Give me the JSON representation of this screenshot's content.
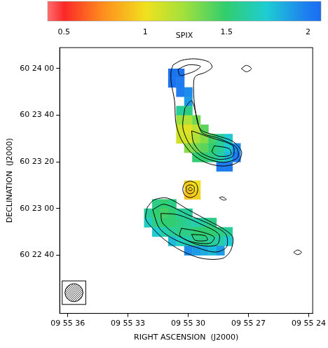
{
  "chart_data": {
    "type": "heatmap",
    "x_label": "RIGHT ASCENSION  (J2000)",
    "y_label": "DECLINATION  (J2000)",
    "xlim": [
      36.4,
      23.8
    ],
    "ylim": [
      15,
      129
    ],
    "xticks": [
      {
        "value": 36,
        "label": "09 55 36"
      },
      {
        "value": 33,
        "label": "09 55 33"
      },
      {
        "value": 30,
        "label": "09 55 30"
      },
      {
        "value": 27,
        "label": "09 55 27"
      },
      {
        "value": 24,
        "label": "09 55 24"
      }
    ],
    "yticks": [
      {
        "value": 40,
        "label": "60 22 40"
      },
      {
        "value": 60,
        "label": "60 23 00"
      },
      {
        "value": 80,
        "label": "60 23 20"
      },
      {
        "value": 100,
        "label": "60 23 40"
      },
      {
        "value": 120,
        "label": "60 24 00"
      }
    ],
    "grid": false,
    "cells": {
      "x": [
        32.8,
        32.4,
        32.0,
        31.6,
        31.2,
        30.8,
        30.4,
        30.0,
        29.6,
        29.2,
        28.8,
        28.4,
        28.0,
        27.6,
        27.2
      ],
      "y": [
        122,
        118,
        114,
        110,
        106,
        102,
        98,
        94,
        90,
        86,
        82,
        78,
        74,
        70,
        66,
        62,
        58,
        54,
        50,
        46,
        42
      ],
      "values": [
        [
          null,
          null,
          null,
          null,
          null,
          null,
          null,
          null,
          null,
          null,
          null,
          null,
          null,
          null,
          null
        ],
        [
          null,
          null,
          null,
          null,
          null,
          2.05,
          2.05,
          null,
          null,
          null,
          null,
          null,
          null,
          null,
          null
        ],
        [
          null,
          null,
          null,
          null,
          null,
          2.05,
          2.0,
          null,
          null,
          null,
          null,
          null,
          null,
          null,
          null
        ],
        [
          null,
          null,
          null,
          null,
          null,
          null,
          2.0,
          1.95,
          null,
          null,
          null,
          null,
          null,
          null,
          null
        ],
        [
          null,
          null,
          null,
          null,
          null,
          null,
          null,
          1.9,
          null,
          null,
          null,
          null,
          null,
          null,
          null
        ],
        [
          null,
          null,
          null,
          null,
          null,
          null,
          1.6,
          1.55,
          null,
          null,
          null,
          null,
          null,
          null,
          null
        ],
        [
          null,
          null,
          null,
          null,
          null,
          null,
          1.25,
          1.2,
          1.35,
          null,
          null,
          null,
          null,
          null,
          null
        ],
        [
          null,
          null,
          null,
          null,
          null,
          null,
          1.1,
          1.05,
          1.15,
          1.4,
          null,
          null,
          null,
          null,
          null
        ],
        [
          null,
          null,
          null,
          null,
          null,
          null,
          1.1,
          1.1,
          1.2,
          1.3,
          1.45,
          1.6,
          1.75,
          null,
          null
        ],
        [
          null,
          null,
          null,
          null,
          null,
          null,
          null,
          1.3,
          1.35,
          1.4,
          1.5,
          1.6,
          1.75,
          1.95,
          null
        ],
        [
          null,
          null,
          null,
          null,
          null,
          null,
          null,
          null,
          1.5,
          1.5,
          1.55,
          1.65,
          1.8,
          2.0,
          null
        ],
        [
          null,
          null,
          null,
          null,
          null,
          null,
          null,
          null,
          null,
          null,
          null,
          2.0,
          2.0,
          null,
          null
        ],
        [
          null,
          null,
          null,
          null,
          null,
          null,
          null,
          null,
          null,
          null,
          null,
          null,
          null,
          null,
          null
        ],
        [
          null,
          null,
          null,
          null,
          null,
          null,
          null,
          0.95,
          1.0,
          null,
          null,
          null,
          null,
          null,
          null
        ],
        [
          null,
          null,
          null,
          null,
          null,
          null,
          null,
          0.9,
          0.95,
          null,
          null,
          null,
          null,
          null,
          null
        ],
        [
          null,
          null,
          null,
          1.55,
          1.5,
          1.55,
          null,
          null,
          null,
          null,
          null,
          null,
          null,
          null,
          null
        ],
        [
          null,
          null,
          1.6,
          1.5,
          1.45,
          1.5,
          1.6,
          1.6,
          null,
          null,
          null,
          null,
          null,
          null,
          null
        ],
        [
          null,
          null,
          1.7,
          1.55,
          1.5,
          1.5,
          1.55,
          1.6,
          1.65,
          1.6,
          1.55,
          null,
          null,
          null,
          null
        ],
        [
          null,
          null,
          null,
          1.75,
          1.65,
          1.6,
          1.55,
          1.55,
          1.5,
          1.5,
          1.5,
          1.55,
          1.6,
          null,
          null
        ],
        [
          null,
          null,
          null,
          null,
          null,
          1.8,
          1.7,
          1.65,
          1.55,
          1.55,
          1.6,
          1.65,
          1.75,
          null,
          null
        ],
        [
          null,
          null,
          null,
          null,
          null,
          null,
          null,
          1.95,
          1.9,
          1.85,
          1.8,
          1.9,
          null,
          null,
          null
        ]
      ]
    },
    "colorbar": {
      "label": "SPIX",
      "range": [
        0.4,
        2.08
      ],
      "ticks": [
        0.5,
        1,
        1.5,
        2
      ]
    },
    "contours": [
      [
        [
          30.75,
          121.6
        ],
        [
          30.34,
          123.5
        ],
        [
          29.66,
          124.2
        ],
        [
          28.98,
          122.9
        ],
        [
          28.81,
          120.6
        ],
        [
          29.15,
          118.4
        ],
        [
          29.66,
          116.5
        ],
        [
          29.73,
          111.0
        ],
        [
          29.66,
          103.0
        ],
        [
          29.39,
          94.0
        ],
        [
          28.64,
          91.4
        ],
        [
          27.78,
          88.8
        ],
        [
          27.34,
          84.3
        ],
        [
          27.54,
          79.8
        ],
        [
          28.29,
          78.2
        ],
        [
          29.15,
          79.8
        ],
        [
          29.83,
          83.7
        ],
        [
          30.34,
          89.5
        ],
        [
          30.61,
          96.5
        ],
        [
          30.68,
          106.2
        ],
        [
          30.85,
          114.2
        ],
        [
          30.85,
          119.0
        ]
      ],
      [
        [
          30.51,
          119.7
        ],
        [
          30.0,
          121.6
        ],
        [
          29.39,
          121.0
        ],
        [
          29.66,
          119.0
        ],
        [
          30.07,
          117.7
        ],
        [
          30.41,
          117.1
        ]
      ],
      [
        [
          30.17,
          103.0
        ],
        [
          29.83,
          106.2
        ],
        [
          29.59,
          99.7
        ],
        [
          29.32,
          92.6
        ],
        [
          28.47,
          90.1
        ],
        [
          27.61,
          86.3
        ],
        [
          27.54,
          81.8
        ],
        [
          28.29,
          79.8
        ],
        [
          29.32,
          82.4
        ],
        [
          29.93,
          87.5
        ],
        [
          30.27,
          94.9
        ]
      ],
      [
        [
          29.83,
          93.3
        ],
        [
          28.98,
          90.7
        ],
        [
          27.78,
          86.9
        ],
        [
          27.78,
          82.4
        ],
        [
          28.47,
          81.1
        ],
        [
          29.32,
          83.7
        ],
        [
          29.73,
          88.2
        ]
      ],
      [
        [
          28.7,
          86.9
        ],
        [
          27.95,
          85.6
        ],
        [
          27.88,
          83.0
        ],
        [
          28.47,
          82.4
        ],
        [
          28.81,
          84.3
        ]
      ],
      [
        [
          29.9,
          71.8
        ],
        [
          29.62,
          70.8
        ],
        [
          29.52,
          68.2
        ],
        [
          29.62,
          65.7
        ],
        [
          29.9,
          64.7
        ],
        [
          30.17,
          65.7
        ],
        [
          30.27,
          68.2
        ],
        [
          30.17,
          70.8
        ]
      ],
      [
        [
          29.9,
          70.2
        ],
        [
          29.73,
          69.6
        ],
        [
          29.69,
          68.2
        ],
        [
          29.73,
          67.0
        ],
        [
          29.9,
          66.3
        ],
        [
          30.07,
          67.0
        ],
        [
          30.1,
          68.2
        ],
        [
          30.07,
          69.6
        ]
      ],
      [
        [
          29.9,
          69.2
        ],
        [
          29.79,
          68.2
        ],
        [
          29.9,
          67.6
        ],
        [
          30.0,
          68.2
        ]
      ],
      [
        [
          32.04,
          60.5
        ],
        [
          31.7,
          63.7
        ],
        [
          31.02,
          64.4
        ],
        [
          30.0,
          59.5
        ],
        [
          28.98,
          54.7
        ],
        [
          28.29,
          51.5
        ],
        [
          27.78,
          47.7
        ],
        [
          27.89,
          41.9
        ],
        [
          28.29,
          38.6
        ],
        [
          29.32,
          38.6
        ],
        [
          30.34,
          41.9
        ],
        [
          31.19,
          46.7
        ],
        [
          31.7,
          50.9
        ],
        [
          32.11,
          55.4
        ]
      ],
      [
        [
          31.77,
          59.5
        ],
        [
          31.19,
          61.8
        ],
        [
          30.0,
          57.3
        ],
        [
          28.81,
          52.8
        ],
        [
          28.12,
          48.9
        ],
        [
          28.09,
          43.5
        ],
        [
          28.64,
          41.3
        ],
        [
          29.66,
          43.5
        ],
        [
          30.68,
          46.7
        ],
        [
          31.43,
          51.5
        ]
      ],
      [
        [
          31.36,
          57.9
        ],
        [
          30.51,
          57.3
        ],
        [
          29.32,
          53.1
        ],
        [
          28.47,
          48.9
        ],
        [
          28.57,
          44.4
        ],
        [
          29.49,
          44.4
        ],
        [
          30.61,
          48.9
        ],
        [
          31.29,
          54.0
        ]
      ],
      [
        [
          30.34,
          51.5
        ],
        [
          29.32,
          49.9
        ],
        [
          28.7,
          47.7
        ],
        [
          28.91,
          45.1
        ],
        [
          29.83,
          45.7
        ],
        [
          30.41,
          48.3
        ]
      ],
      [
        [
          29.83,
          48.9
        ],
        [
          29.15,
          48.3
        ],
        [
          29.05,
          46.4
        ],
        [
          29.66,
          46.4
        ]
      ],
      [
        [
          27.35,
          120.0
        ],
        [
          27.1,
          121.4
        ],
        [
          26.85,
          120.0
        ],
        [
          27.1,
          118.6
        ]
      ],
      [
        [
          28.45,
          64.6
        ],
        [
          28.3,
          65.0
        ],
        [
          28.1,
          63.9
        ],
        [
          28.25,
          63.6
        ]
      ],
      [
        [
          24.75,
          41.2
        ],
        [
          24.55,
          42.2
        ],
        [
          24.35,
          41.2
        ],
        [
          24.55,
          40.2
        ]
      ]
    ],
    "beam": {
      "x": 35.69,
      "y": 23.9,
      "diameter": 7.7
    }
  }
}
